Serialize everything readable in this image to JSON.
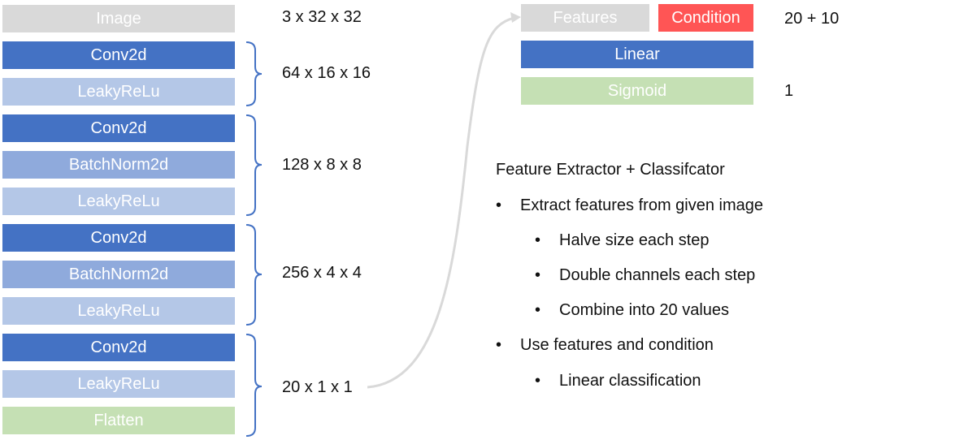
{
  "encoder": {
    "blocks": [
      {
        "label": "Image",
        "kind": "image"
      },
      {
        "label": "Conv2d",
        "kind": "conv"
      },
      {
        "label": "LeakyReLu",
        "kind": "leaky"
      },
      {
        "label": "Conv2d",
        "kind": "conv"
      },
      {
        "label": "BatchNorm2d",
        "kind": "bn"
      },
      {
        "label": "LeakyReLu",
        "kind": "leaky"
      },
      {
        "label": "Conv2d",
        "kind": "conv"
      },
      {
        "label": "BatchNorm2d",
        "kind": "bn"
      },
      {
        "label": "LeakyReLu",
        "kind": "leaky"
      },
      {
        "label": "Conv2d",
        "kind": "conv"
      },
      {
        "label": "LeakyReLu",
        "kind": "leaky"
      },
      {
        "label": "Flatten",
        "kind": "flatten"
      }
    ],
    "dims": [
      "3 x 32 x 32",
      "64 x 16 x 16",
      "128 x 8 x 8",
      "256 x 4 x 4",
      "20 x 1 x 1"
    ]
  },
  "classifier": {
    "features_label": "Features",
    "condition_label": "Condition",
    "linear_label": "Linear",
    "sigmoid_label": "Sigmoid",
    "input_dim": "20 + 10",
    "output_dim": "1"
  },
  "description": {
    "title": "Feature Extractor + Classifcator",
    "bullets": [
      {
        "level": 1,
        "text": "Extract features from given image"
      },
      {
        "level": 2,
        "text": "Halve size each step"
      },
      {
        "level": 2,
        "text": "Double channels each step"
      },
      {
        "level": 2,
        "text": "Combine into 20 values"
      },
      {
        "level": 1,
        "text": "Use features and condition"
      },
      {
        "level": 2,
        "text": "Linear classification"
      }
    ],
    "bullet_char": "•"
  },
  "colors": {
    "image": "#d9d9d9",
    "conv": "#4472c4",
    "leaky": "#b4c7e7",
    "batchnorm": "#8faadc",
    "flatten": "#c5e0b4",
    "condition": "#ff5555",
    "brace": "#4472c4",
    "arrow": "#d9d9d9"
  }
}
